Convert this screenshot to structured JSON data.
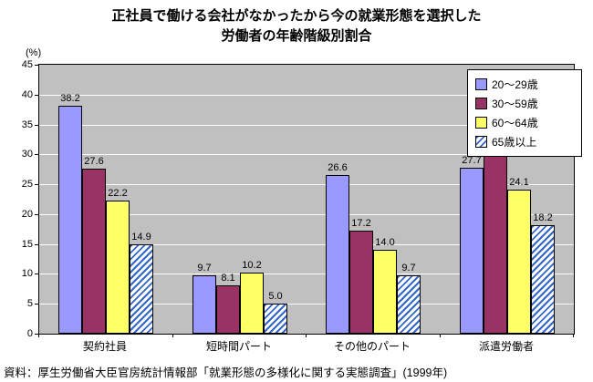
{
  "title": {
    "line1": "正社員で働ける会社がなかったから今の就業形態を選択した",
    "line2": "労働者の年齢階級別割合"
  },
  "source": "資料：厚生労働省大臣官房統計情報部「就業形態の多様化に関する実態調査」(1999年)",
  "chart_data": {
    "type": "bar",
    "title": "正社員で働ける会社がなかったから今の就業形態を選択した労働者の年齢階級別割合",
    "unit_label": "(%)",
    "categories": [
      "契約社員",
      "短時間パート",
      "その他のパート",
      "派遣労働者"
    ],
    "series": [
      {
        "name": "20〜29歳",
        "color": "#9999ff",
        "pattern": "solid",
        "values": [
          38.2,
          9.7,
          26.6,
          27.7
        ]
      },
      {
        "name": "30〜59歳",
        "color": "#993366",
        "pattern": "solid",
        "values": [
          27.6,
          8.1,
          17.2,
          29.7
        ]
      },
      {
        "name": "60〜64歳",
        "color": "#ffff66",
        "pattern": "solid",
        "values": [
          22.2,
          10.2,
          14.0,
          24.1
        ]
      },
      {
        "name": "65歳以上",
        "color": "#3366cc",
        "pattern": "hatch",
        "values": [
          14.9,
          5.0,
          9.7,
          18.2
        ]
      }
    ],
    "ylim": [
      0,
      45
    ],
    "ytick_step": 5,
    "yticks": [
      0,
      5,
      10,
      15,
      20,
      25,
      30,
      35,
      40,
      45
    ],
    "grid": true,
    "plot_background": "#c0c0c0",
    "legend_position": "top-right"
  }
}
